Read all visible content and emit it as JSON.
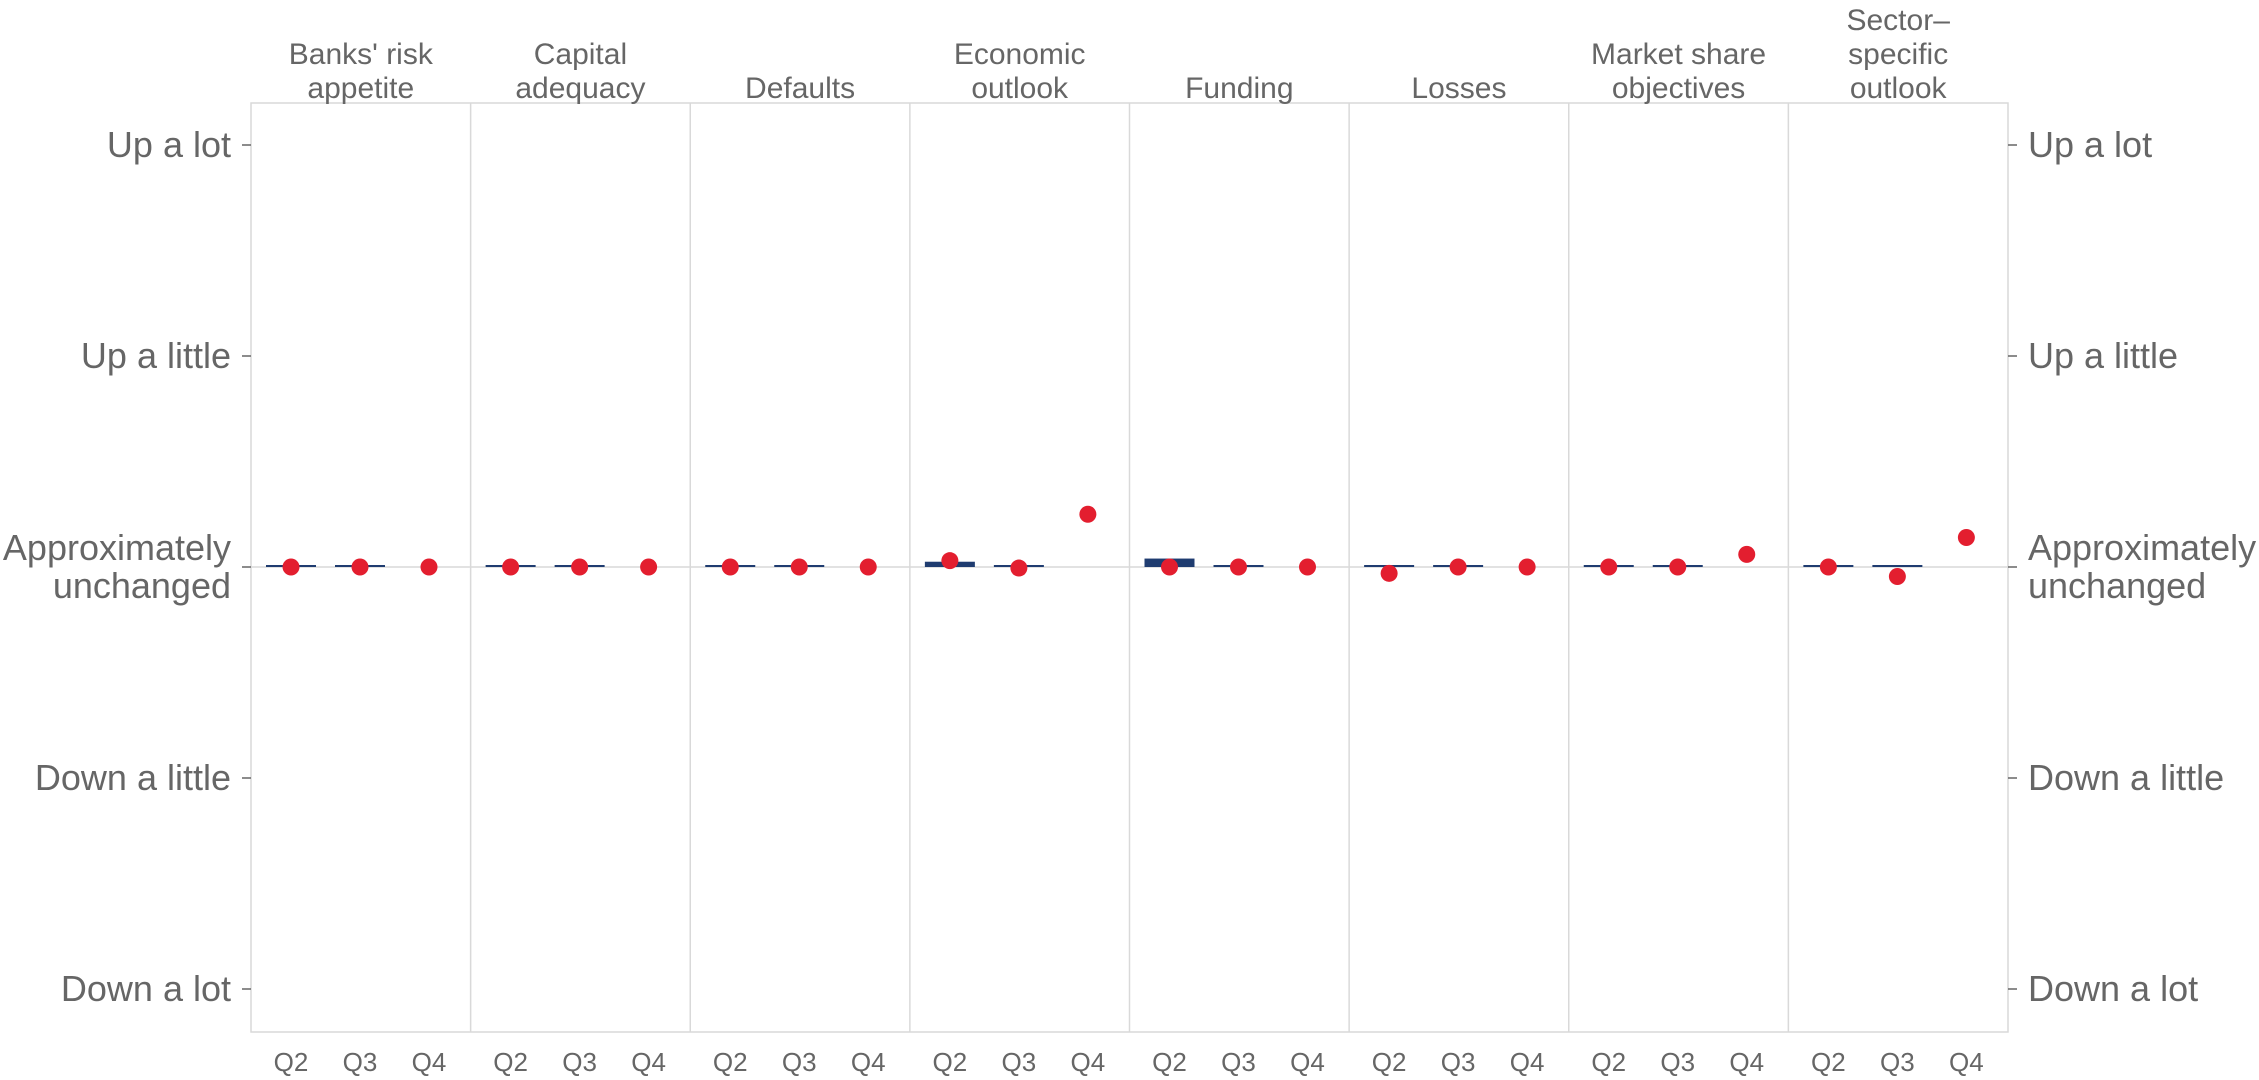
{
  "chart_data": {
    "type": "bar",
    "y_scale": {
      "ylim": [
        -2,
        2
      ],
      "ticks": [
        {
          "value": 2,
          "label": "Up a lot"
        },
        {
          "value": 1,
          "label": "Up a little"
        },
        {
          "value": 0,
          "label": "Approximately\nunchanged"
        },
        {
          "value": -1,
          "label": "Down a little"
        },
        {
          "value": -2,
          "label": "Down a lot"
        }
      ]
    },
    "colors": {
      "bar": "#1f3c70",
      "dot": "#e31e2f",
      "divider": "#d9d9d9",
      "text": "#666666"
    },
    "panels": [
      {
        "title": "Banks' risk\nappetite",
        "quarters": [
          "Q2",
          "Q3",
          "Q4"
        ],
        "bars": [
          0,
          0,
          null
        ],
        "dots": [
          0,
          0,
          0
        ]
      },
      {
        "title": "Capital\nadequacy",
        "quarters": [
          "Q2",
          "Q3",
          "Q4"
        ],
        "bars": [
          0,
          0,
          null
        ],
        "dots": [
          0,
          0,
          0
        ]
      },
      {
        "title": "Defaults",
        "quarters": [
          "Q2",
          "Q3",
          "Q4"
        ],
        "bars": [
          0,
          0,
          null
        ],
        "dots": [
          0,
          0,
          0
        ]
      },
      {
        "title": "Economic\noutlook",
        "quarters": [
          "Q2",
          "Q3",
          "Q4"
        ],
        "bars": [
          0.025,
          0,
          null
        ],
        "dots": [
          0.03,
          -0.005,
          0.25
        ]
      },
      {
        "title": "Funding",
        "quarters": [
          "Q2",
          "Q3",
          "Q4"
        ],
        "bars": [
          0.04,
          0,
          null
        ],
        "dots": [
          0,
          0,
          0
        ]
      },
      {
        "title": "Losses",
        "quarters": [
          "Q2",
          "Q3",
          "Q4"
        ],
        "bars": [
          0,
          0,
          null
        ],
        "dots": [
          -0.03,
          0,
          0
        ]
      },
      {
        "title": "Market share\nobjectives",
        "quarters": [
          "Q2",
          "Q3",
          "Q4"
        ],
        "bars": [
          0,
          0,
          null
        ],
        "dots": [
          0,
          0,
          0.06
        ]
      },
      {
        "title": "Sector–\nspecific\noutlook",
        "quarters": [
          "Q2",
          "Q3",
          "Q4"
        ],
        "bars": [
          0,
          0,
          null
        ],
        "dots": [
          0,
          -0.045,
          0.14
        ]
      }
    ]
  }
}
